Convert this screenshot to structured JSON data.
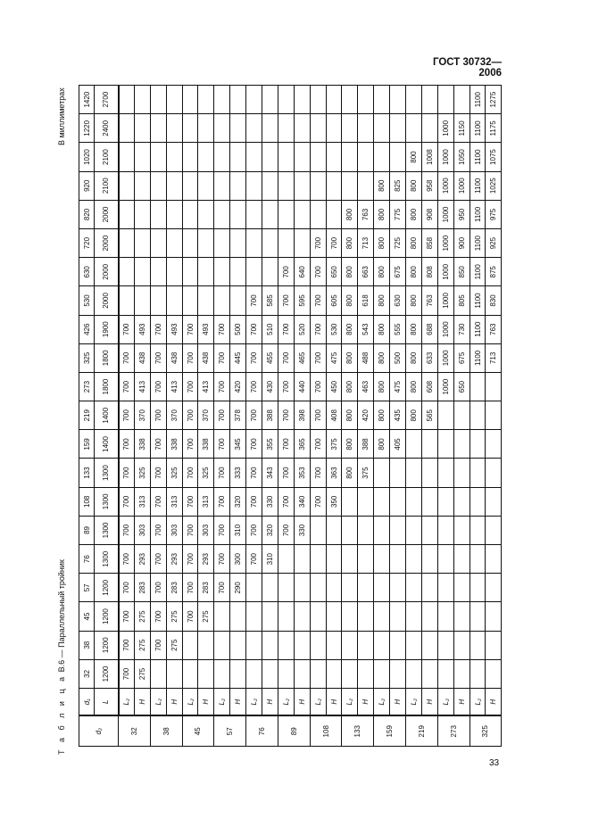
{
  "header": {
    "standard": "ГОСТ 30732—2006"
  },
  "caption": {
    "prefix": "Т а б л и ц а",
    "text": "В.6 — Параллельный тройник"
  },
  "units": "В миллиметрах",
  "page_number": "33",
  "table": {
    "d2_label": "d₂",
    "d1_label": "d₁",
    "L_label": "L",
    "L2_label": "L₂",
    "H_label": "H",
    "d1": [
      "32",
      "38",
      "45",
      "57",
      "76",
      "89",
      "108",
      "133",
      "159",
      "219",
      "273",
      "325",
      "426",
      "530",
      "630",
      "720",
      "820",
      "920",
      "1020",
      "1220",
      "1420"
    ],
    "L": [
      "1200",
      "1200",
      "1200",
      "1200",
      "1300",
      "1300",
      "1300",
      "1300",
      "1400",
      "1400",
      "1800",
      "1800",
      "1900",
      "2000",
      "2000",
      "2000",
      "2000",
      "2100",
      "2100",
      "2400",
      "2700"
    ],
    "groups": [
      {
        "d2": "32",
        "L2": [
          "700",
          "700",
          "700",
          "700",
          "700",
          "700",
          "700",
          "700",
          "700",
          "700",
          "700",
          "700",
          "700",
          "",
          "",
          "",
          "",
          "",
          "",
          "",
          ""
        ],
        "H": [
          "275",
          "275",
          "275",
          "283",
          "293",
          "303",
          "313",
          "325",
          "338",
          "370",
          "413",
          "438",
          "493",
          "",
          "",
          "",
          "",
          "",
          "",
          "",
          ""
        ]
      },
      {
        "d2": "38",
        "L2": [
          "",
          "700",
          "700",
          "700",
          "700",
          "700",
          "700",
          "700",
          "700",
          "700",
          "700",
          "700",
          "700",
          "",
          "",
          "",
          "",
          "",
          "",
          "",
          ""
        ],
        "H": [
          "",
          "275",
          "275",
          "283",
          "293",
          "303",
          "313",
          "325",
          "338",
          "370",
          "413",
          "438",
          "493",
          "",
          "",
          "",
          "",
          "",
          "",
          "",
          ""
        ]
      },
      {
        "d2": "45",
        "L2": [
          "",
          "",
          "700",
          "700",
          "700",
          "700",
          "700",
          "700",
          "700",
          "700",
          "700",
          "700",
          "700",
          "",
          "",
          "",
          "",
          "",
          "",
          "",
          ""
        ],
        "H": [
          "",
          "",
          "275",
          "283",
          "293",
          "303",
          "313",
          "325",
          "338",
          "370",
          "413",
          "438",
          "493",
          "",
          "",
          "",
          "",
          "",
          "",
          "",
          ""
        ]
      },
      {
        "d2": "57",
        "L2": [
          "",
          "",
          "",
          "700",
          "700",
          "700",
          "700",
          "700",
          "700",
          "700",
          "700",
          "700",
          "700",
          "",
          "",
          "",
          "",
          "",
          "",
          "",
          ""
        ],
        "H": [
          "",
          "",
          "",
          "290",
          "300",
          "310",
          "320",
          "333",
          "345",
          "378",
          "420",
          "445",
          "500",
          "",
          "",
          "",
          "",
          "",
          "",
          "",
          ""
        ]
      },
      {
        "d2": "76",
        "L2": [
          "",
          "",
          "",
          "",
          "700",
          "700",
          "700",
          "700",
          "700",
          "700",
          "700",
          "700",
          "700",
          "700",
          "",
          "",
          "",
          "",
          "",
          "",
          ""
        ],
        "H": [
          "",
          "",
          "",
          "",
          "310",
          "320",
          "330",
          "343",
          "355",
          "388",
          "430",
          "455",
          "510",
          "585",
          "",
          "",
          "",
          "",
          "",
          "",
          ""
        ]
      },
      {
        "d2": "89",
        "L2": [
          "",
          "",
          "",
          "",
          "",
          "700",
          "700",
          "700",
          "700",
          "700",
          "700",
          "700",
          "700",
          "700",
          "700",
          "",
          "",
          "",
          "",
          "",
          ""
        ],
        "H": [
          "",
          "",
          "",
          "",
          "",
          "330",
          "340",
          "353",
          "365",
          "398",
          "440",
          "465",
          "520",
          "595",
          "640",
          "",
          "",
          "",
          "",
          "",
          ""
        ]
      },
      {
        "d2": "108",
        "L2": [
          "",
          "",
          "",
          "",
          "",
          "",
          "700",
          "700",
          "700",
          "700",
          "700",
          "700",
          "700",
          "700",
          "700",
          "700",
          "",
          "",
          "",
          "",
          ""
        ],
        "H": [
          "",
          "",
          "",
          "",
          "",
          "",
          "350",
          "363",
          "375",
          "408",
          "450",
          "475",
          "530",
          "605",
          "650",
          "700",
          "",
          "",
          "",
          "",
          ""
        ]
      },
      {
        "d2": "133",
        "L2": [
          "",
          "",
          "",
          "",
          "",
          "",
          "",
          "800",
          "800",
          "800",
          "800",
          "800",
          "800",
          "800",
          "800",
          "800",
          "800",
          "",
          "",
          "",
          ""
        ],
        "H": [
          "",
          "",
          "",
          "",
          "",
          "",
          "",
          "375",
          "388",
          "420",
          "463",
          "488",
          "543",
          "618",
          "663",
          "713",
          "763",
          "",
          "",
          "",
          ""
        ]
      },
      {
        "d2": "159",
        "L2": [
          "",
          "",
          "",
          "",
          "",
          "",
          "",
          "",
          "800",
          "800",
          "800",
          "800",
          "800",
          "800",
          "800",
          "800",
          "800",
          "800",
          "",
          "",
          ""
        ],
        "H": [
          "",
          "",
          "",
          "",
          "",
          "",
          "",
          "",
          "405",
          "435",
          "475",
          "500",
          "555",
          "630",
          "675",
          "725",
          "775",
          "825",
          "",
          "",
          ""
        ]
      },
      {
        "d2": "219",
        "L2": [
          "",
          "",
          "",
          "",
          "",
          "",
          "",
          "",
          "",
          "800",
          "800",
          "800",
          "800",
          "800",
          "800",
          "800",
          "800",
          "800",
          "800",
          "",
          ""
        ],
        "H": [
          "",
          "",
          "",
          "",
          "",
          "",
          "",
          "",
          "",
          "565",
          "608",
          "633",
          "688",
          "763",
          "808",
          "858",
          "908",
          "958",
          "1008",
          "",
          ""
        ]
      },
      {
        "d2": "273",
        "L2": [
          "",
          "",
          "",
          "",
          "",
          "",
          "",
          "",
          "",
          "",
          "1000",
          "1000",
          "1000",
          "1000",
          "1000",
          "1000",
          "1000",
          "1000",
          "1000",
          "1000",
          ""
        ],
        "H": [
          "",
          "",
          "",
          "",
          "",
          "",
          "",
          "",
          "",
          "",
          "650",
          "675",
          "730",
          "805",
          "850",
          "900",
          "950",
          "1000",
          "1050",
          "1150",
          ""
        ]
      },
      {
        "d2": "325",
        "L2": [
          "",
          "",
          "",
          "",
          "",
          "",
          "",
          "",
          "",
          "",
          "",
          "1100",
          "1100",
          "1100",
          "1100",
          "1100",
          "1100",
          "1100",
          "1100",
          "1100",
          "1100"
        ],
        "H": [
          "",
          "",
          "",
          "",
          "",
          "",
          "",
          "",
          "",
          "",
          "",
          "713",
          "763",
          "830",
          "875",
          "925",
          "975",
          "1025",
          "1075",
          "1175",
          "1275"
        ]
      }
    ]
  }
}
